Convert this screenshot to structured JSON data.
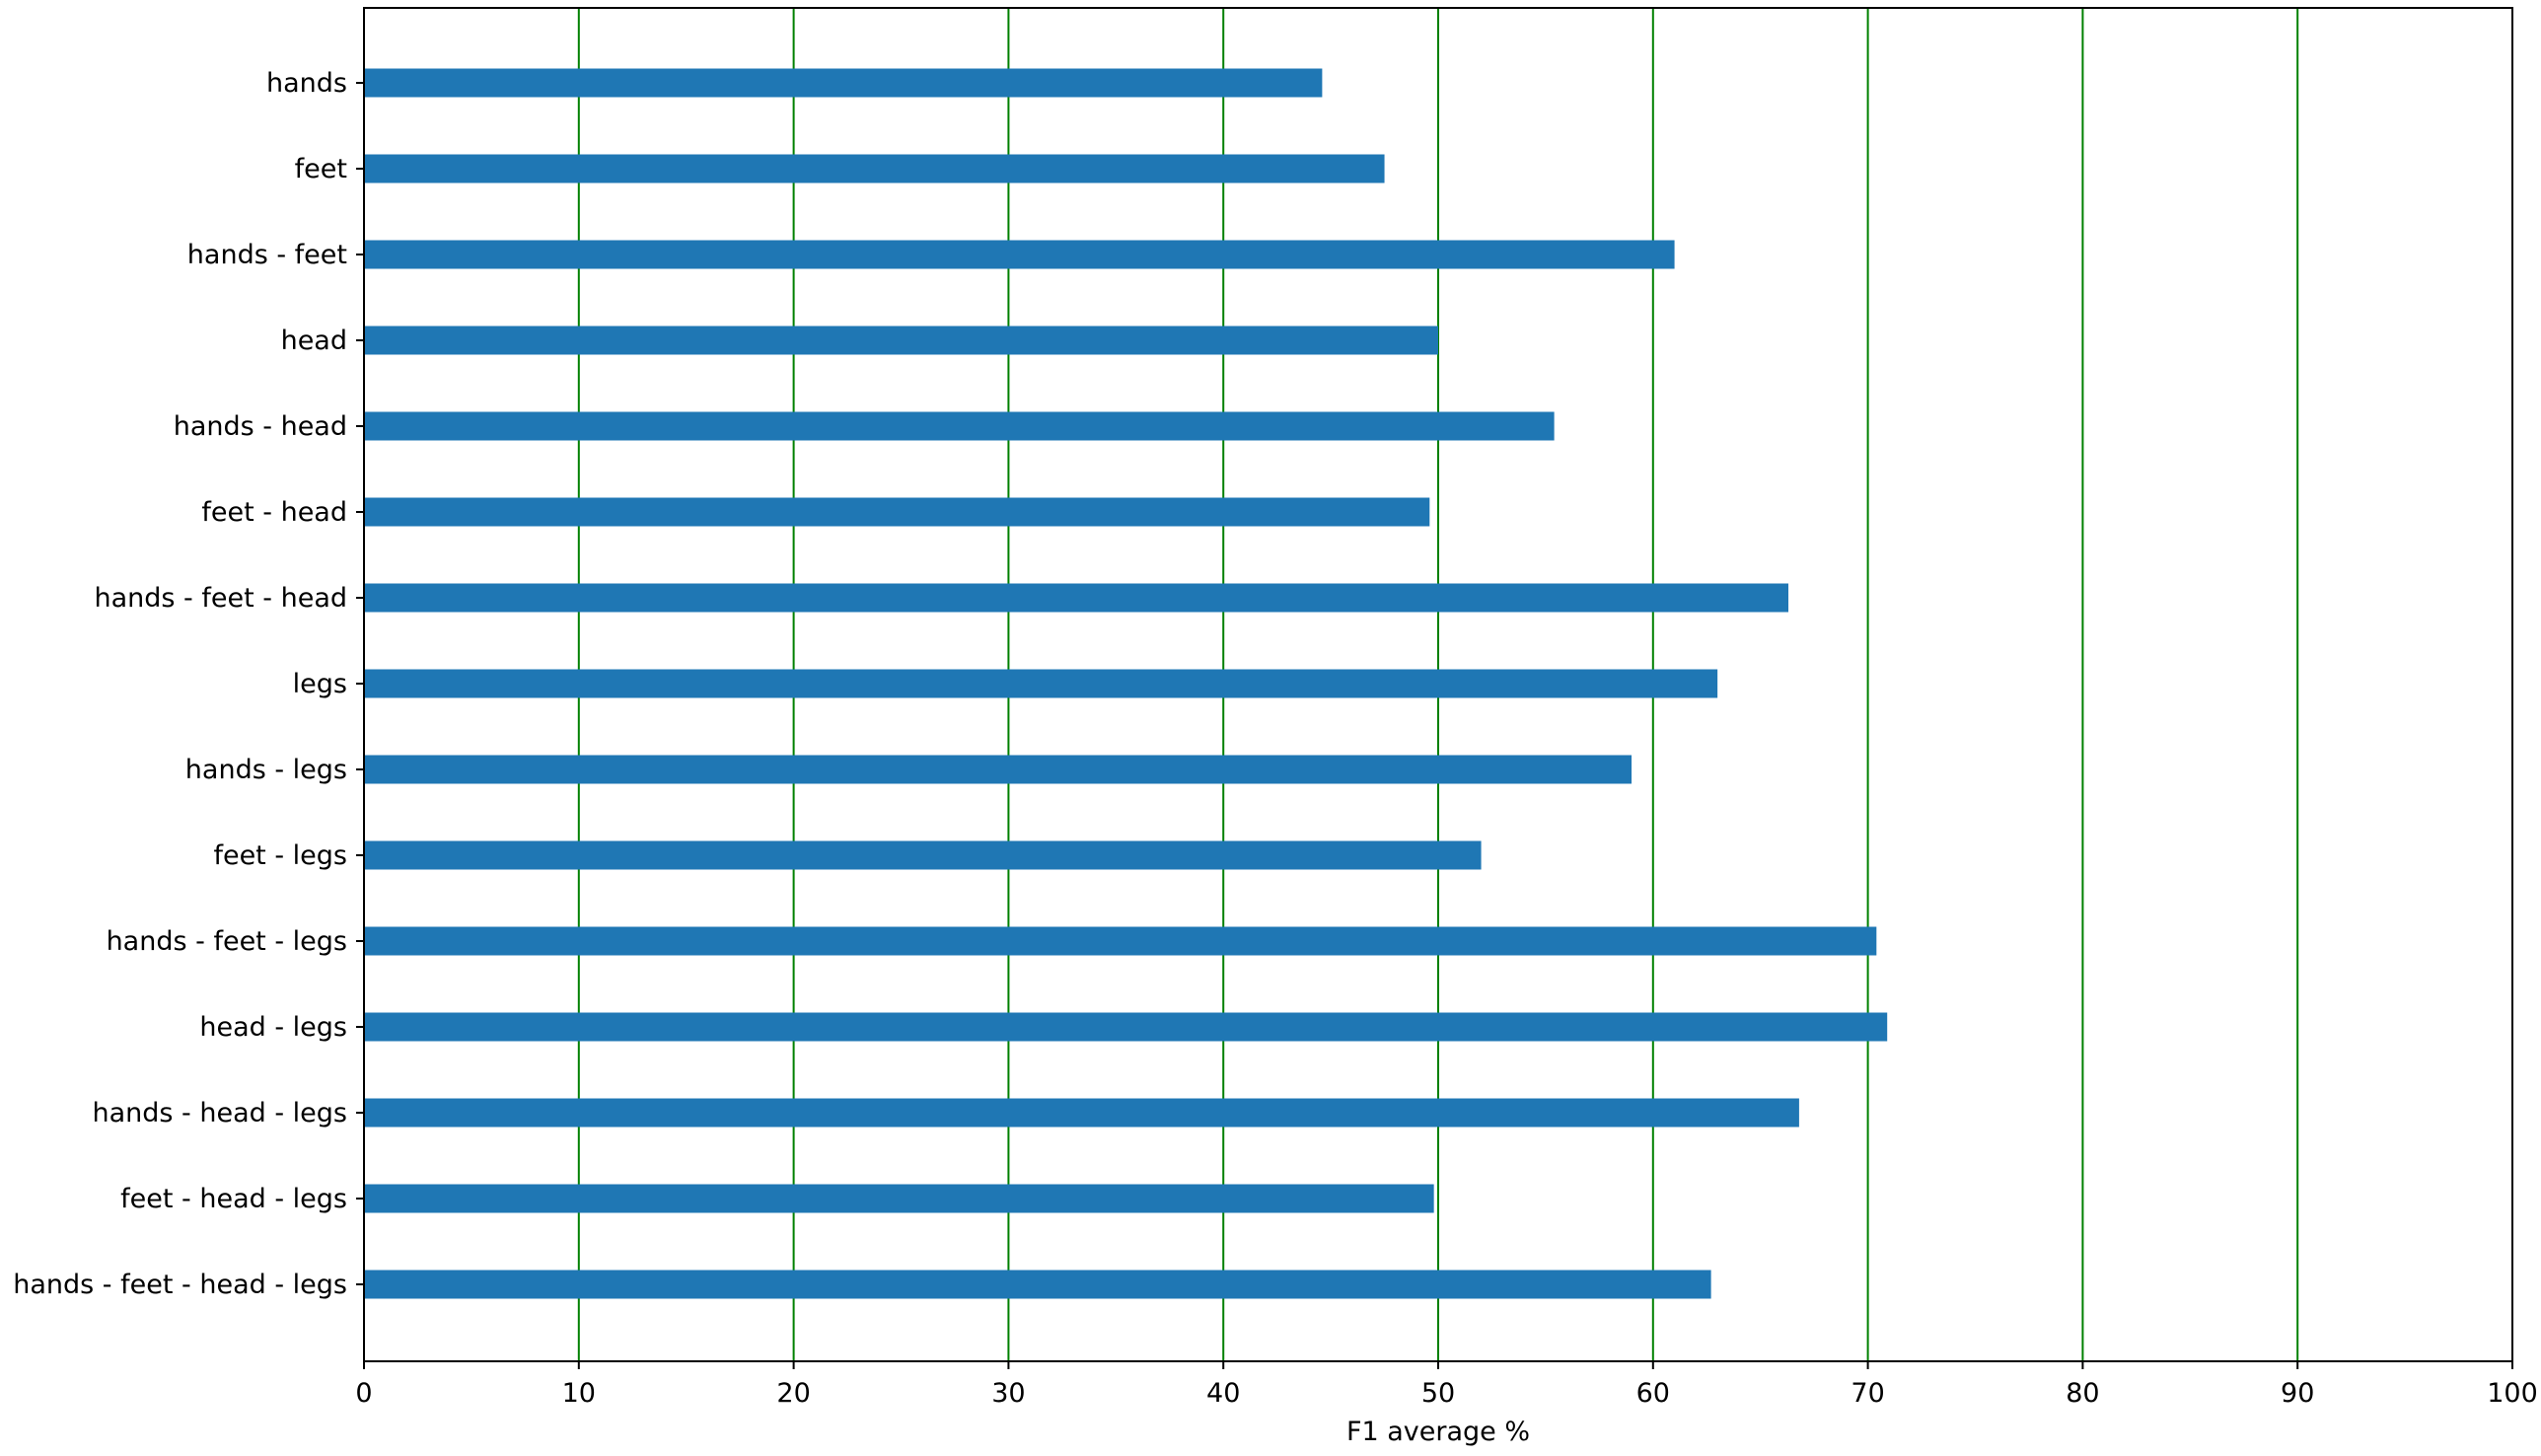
{
  "chart_data": {
    "type": "bar",
    "orientation": "horizontal",
    "title": "",
    "xlabel": "F1 average %",
    "ylabel": "",
    "xlim": [
      0,
      100
    ],
    "xticks": [
      0,
      10,
      20,
      30,
      40,
      50,
      60,
      70,
      80,
      90,
      100
    ],
    "grid": "vertical",
    "grid_color": "#008000",
    "bar_color": "#1f77b4",
    "categories": [
      "hands",
      "feet",
      "hands - feet",
      "head",
      "hands - head",
      "feet - head",
      "hands - feet - head",
      "legs",
      "hands - legs",
      "feet - legs",
      "hands - feet - legs",
      "head - legs",
      "hands - head - legs",
      "feet - head - legs",
      "hands - feet - head - legs"
    ],
    "values": [
      44.6,
      47.5,
      61.0,
      50.0,
      55.4,
      49.6,
      66.3,
      63.0,
      59.0,
      52.0,
      70.4,
      70.9,
      66.8,
      49.8,
      62.7
    ]
  }
}
